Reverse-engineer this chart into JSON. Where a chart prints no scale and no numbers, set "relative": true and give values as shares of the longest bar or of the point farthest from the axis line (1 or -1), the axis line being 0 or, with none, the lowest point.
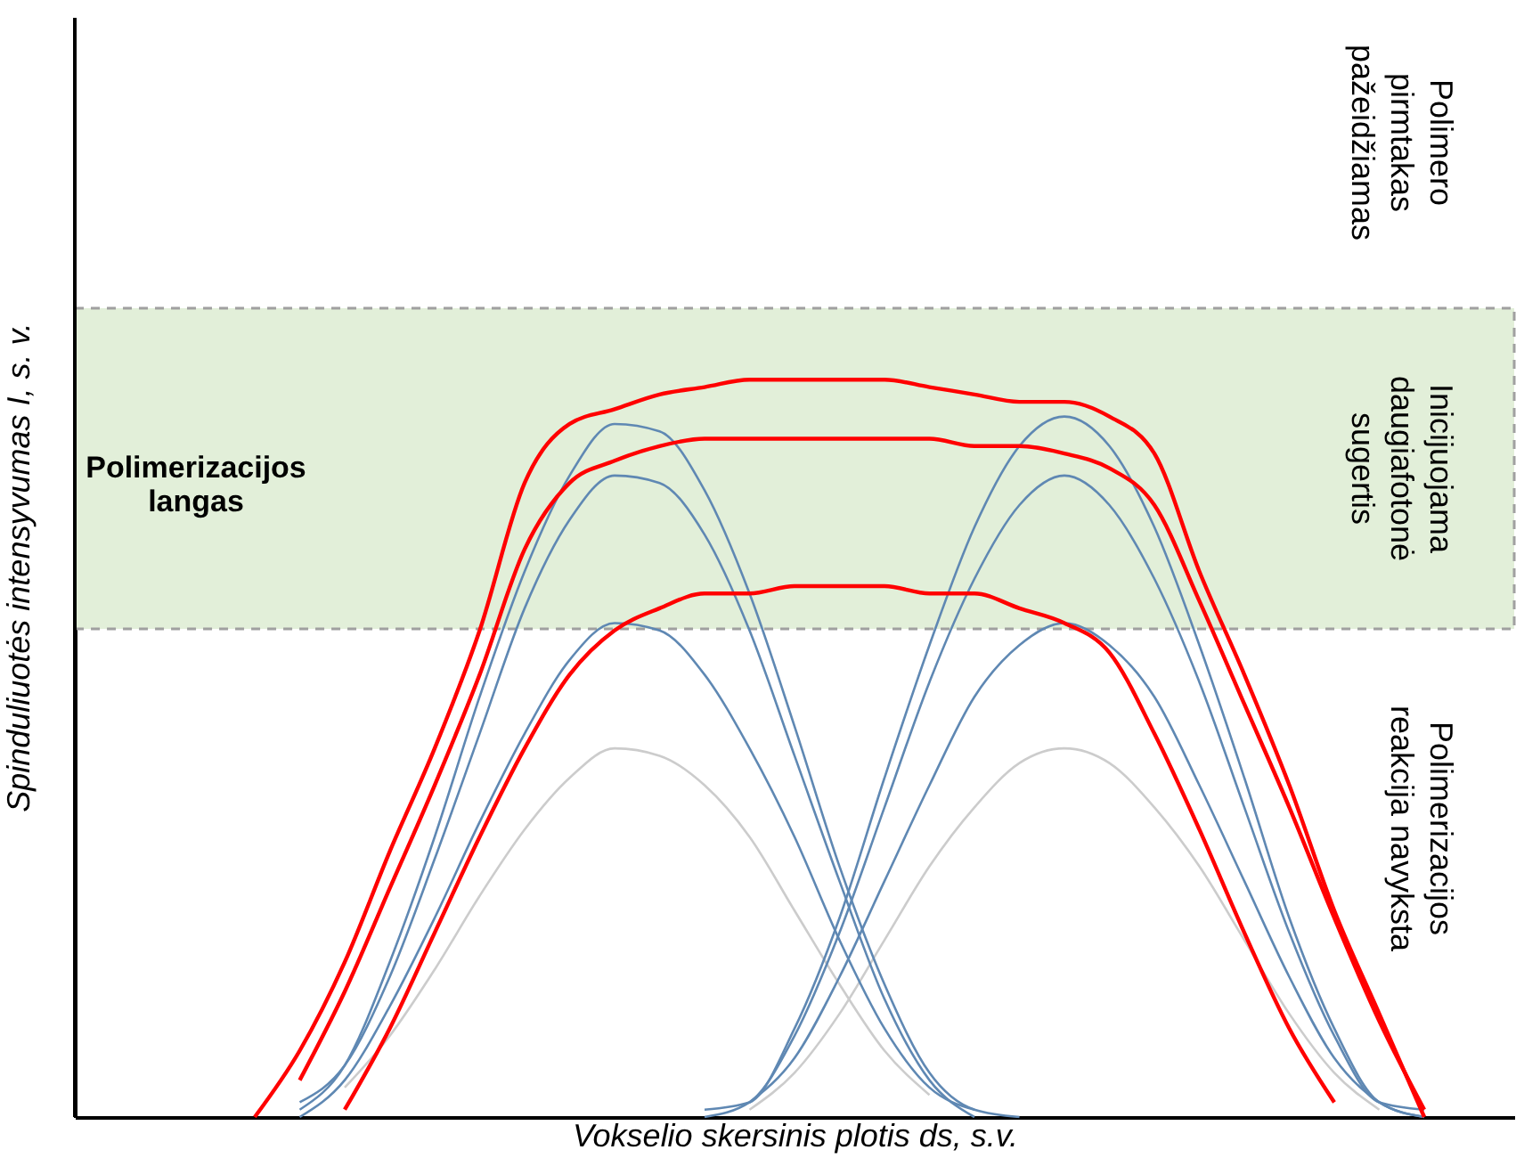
{
  "chart_data": {
    "type": "line",
    "relative": true,
    "grid": false,
    "marker": "none",
    "line_style": "solid",
    "xlabel": "Vokselio skersinis plotis ds, s.v.",
    "ylabel": "Spinduliuotės intensyvumas I, s. v.",
    "categories": [
      null,
      null,
      null,
      null,
      null,
      null,
      null,
      null,
      null,
      null,
      null,
      null,
      null,
      null,
      null,
      null,
      null,
      null,
      null,
      null,
      null,
      null,
      null,
      null,
      null,
      null,
      null,
      null,
      null,
      null,
      null,
      null,
      null
    ],
    "bands": [
      {
        "axis": "y",
        "from": 0.662,
        "to": 1.097,
        "label": "Polimerizacijos\nlangas",
        "color": "#e2efd9"
      }
    ],
    "annotations": [
      "Polimero\npirmtakas\npažeidžiamas",
      "Inicijuojama\ndaugiafotonė\nsugertis",
      "Polimerizacijos\nreakcija navyksta"
    ],
    "series": [
      {
        "color": "#cccccc",
        "values": [
          null,
          null,
          null,
          null,
          null,
          null,
          0.04,
          0.11,
          0.2,
          0.3,
          0.39,
          0.46,
          0.5,
          0.49,
          0.45,
          0.38,
          0.28,
          0.18,
          0.09,
          0.03,
          null,
          null,
          null,
          null,
          null,
          null,
          null,
          null,
          null,
          null,
          null,
          null,
          null
        ]
      },
      {
        "color": "#cccccc",
        "values": [
          null,
          null,
          null,
          null,
          null,
          null,
          null,
          null,
          null,
          null,
          null,
          null,
          null,
          null,
          null,
          0.01,
          0.06,
          0.14,
          0.24,
          0.34,
          0.42,
          0.48,
          0.5,
          0.48,
          0.42,
          0.34,
          0.24,
          0.14,
          0.06,
          0.01,
          null,
          null,
          null
        ]
      },
      {
        "color": "#5f88b3",
        "values": [
          null,
          null,
          null,
          null,
          null,
          0.01,
          0.07,
          0.21,
          0.38,
          0.57,
          0.74,
          0.87,
          0.94,
          0.93,
          0.85,
          0.71,
          0.53,
          0.34,
          0.18,
          0.06,
          0.01,
          0,
          null,
          null,
          null,
          null,
          null,
          null,
          null,
          null,
          null,
          null,
          null
        ]
      },
      {
        "color": "#5f88b3",
        "values": [
          null,
          null,
          null,
          null,
          null,
          0.02,
          0.07,
          0.19,
          0.35,
          0.52,
          0.69,
          0.81,
          0.87,
          0.86,
          0.79,
          0.66,
          0.49,
          0.32,
          0.16,
          0.05,
          0,
          null,
          null,
          null,
          null,
          null,
          null,
          null,
          null,
          null,
          null,
          null,
          null
        ]
      },
      {
        "color": "#5f88b3",
        "values": [
          null,
          null,
          null,
          null,
          null,
          0,
          0.05,
          0.15,
          0.27,
          0.4,
          0.52,
          0.62,
          0.67,
          0.66,
          0.6,
          0.5,
          0.38,
          0.24,
          0.12,
          0.04,
          0.01,
          null,
          null,
          null,
          null,
          null,
          null,
          null,
          null,
          null,
          null,
          null,
          null
        ]
      },
      {
        "color": "#5f88b3",
        "values": [
          null,
          null,
          null,
          null,
          null,
          null,
          null,
          null,
          null,
          null,
          null,
          null,
          null,
          null,
          0.01,
          0.02,
          0.12,
          0.27,
          0.46,
          0.64,
          0.8,
          0.91,
          0.95,
          0.91,
          0.8,
          0.64,
          0.46,
          0.27,
          0.12,
          0.02,
          0,
          null,
          null
        ]
      },
      {
        "color": "#5f88b3",
        "values": [
          null,
          null,
          null,
          null,
          null,
          null,
          null,
          null,
          null,
          null,
          null,
          null,
          null,
          null,
          0,
          0.02,
          0.11,
          0.25,
          0.42,
          0.59,
          0.73,
          0.83,
          0.87,
          0.83,
          0.73,
          0.59,
          0.42,
          0.25,
          0.11,
          0.02,
          0.01,
          null,
          null
        ]
      },
      {
        "color": "#5f88b3",
        "values": [
          null,
          null,
          null,
          null,
          null,
          null,
          null,
          null,
          null,
          null,
          null,
          null,
          null,
          null,
          null,
          0.02,
          0.08,
          0.19,
          0.32,
          0.45,
          0.57,
          0.64,
          0.67,
          0.64,
          0.57,
          0.45,
          0.32,
          0.19,
          0.08,
          0.02,
          0,
          null,
          null
        ]
      },
      {
        "color": "#ff0000",
        "values": [
          null,
          null,
          null,
          null,
          0,
          0.09,
          0.21,
          0.36,
          0.5,
          0.66,
          0.86,
          0.94,
          0.96,
          0.98,
          0.99,
          1,
          1,
          1,
          1,
          0.99,
          0.98,
          0.97,
          0.97,
          0.95,
          0.9,
          0.74,
          0.6,
          0.45,
          0.28,
          0.14,
          0,
          null,
          null
        ]
      },
      {
        "color": "#ff0000",
        "values": [
          null,
          null,
          null,
          null,
          null,
          0.05,
          0.17,
          0.31,
          0.45,
          0.6,
          0.77,
          0.86,
          0.89,
          0.91,
          0.92,
          0.92,
          0.92,
          0.92,
          0.92,
          0.92,
          0.91,
          0.91,
          0.9,
          0.88,
          0.83,
          0.7,
          0.56,
          0.42,
          0.27,
          0.13,
          0.01,
          null,
          null
        ]
      },
      {
        "color": "#ff0000",
        "values": [
          null,
          null,
          null,
          null,
          null,
          null,
          0.01,
          0.12,
          0.25,
          0.38,
          0.5,
          0.6,
          0.66,
          0.69,
          0.71,
          0.71,
          0.72,
          0.72,
          0.72,
          0.71,
          0.71,
          0.69,
          0.67,
          0.63,
          0.52,
          0.39,
          0.25,
          0.12,
          0.02,
          null,
          null,
          null,
          null
        ]
      }
    ]
  }
}
